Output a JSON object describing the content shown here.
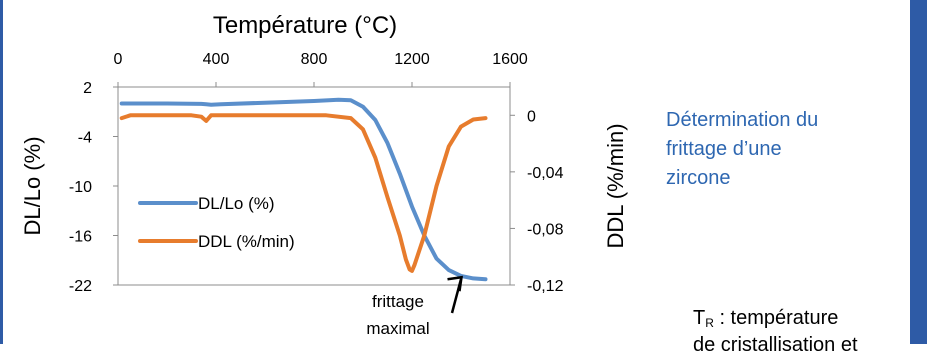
{
  "side_panel": {
    "title": "Détermination du frittage d’une zircone",
    "title_lines": [
      "Détermination du",
      "frittage d’une",
      "zircone"
    ],
    "note_symbol": "T",
    "note_subscript": "R",
    "note_text": " : température",
    "note_cut_text": "de cristallisation et",
    "accent_color": "#2E5BA6",
    "text_color": "#2E67B1"
  },
  "chart_data": {
    "type": "line",
    "title": "Température (°C)",
    "xlabel": "Température (°C)",
    "ylabel": "DL/Lo (%)",
    "y2label": "DDL (%/min)",
    "xlim": [
      0,
      1600
    ],
    "ylim": [
      -22,
      2
    ],
    "y2lim": [
      -0.12,
      0.02
    ],
    "xticks": [
      "0",
      "400",
      "800",
      "1200",
      "1600"
    ],
    "xtick_values": [
      0,
      400,
      800,
      1200,
      1600
    ],
    "yticks": [
      "2",
      "-4",
      "-10",
      "-16",
      "-22"
    ],
    "ytick_values": [
      2,
      -4,
      -10,
      -16,
      -22
    ],
    "y2ticks": [
      "0",
      "-0,04",
      "-0,08",
      "-0,12"
    ],
    "y2tick_values": [
      0,
      -0.04,
      -0.08,
      -0.12
    ],
    "legend_position": "lower-left",
    "grid": false,
    "series": [
      {
        "name": "DL/Lo (%)",
        "axis": "left",
        "color": "#5B8FCB",
        "x": [
          15,
          200,
          340,
          360,
          380,
          420,
          600,
          800,
          900,
          950,
          1000,
          1050,
          1100,
          1150,
          1200,
          1250,
          1300,
          1350,
          1400,
          1450,
          1500
        ],
        "y": [
          0.0,
          0.0,
          -0.05,
          -0.1,
          -0.15,
          -0.1,
          0.1,
          0.3,
          0.45,
          0.4,
          -0.4,
          -2.0,
          -4.8,
          -8.5,
          -12.5,
          -16.0,
          -18.8,
          -20.2,
          -20.9,
          -21.2,
          -21.3
        ]
      },
      {
        "name": "DDL (%/min)",
        "axis": "right",
        "color": "#E77C2D",
        "x": [
          15,
          50,
          300,
          340,
          360,
          370,
          380,
          400,
          600,
          850,
          950,
          1000,
          1050,
          1100,
          1150,
          1175,
          1190,
          1200,
          1210,
          1250,
          1300,
          1350,
          1400,
          1450,
          1500
        ],
        "y": [
          -0.002,
          0.0,
          0.0,
          -0.001,
          -0.004,
          -0.002,
          0.0,
          0.0,
          0.0,
          0.0,
          -0.002,
          -0.01,
          -0.03,
          -0.058,
          -0.085,
          -0.102,
          -0.109,
          -0.11,
          -0.106,
          -0.085,
          -0.05,
          -0.022,
          -0.008,
          -0.003,
          -0.002
        ]
      }
    ],
    "annotations": [
      {
        "text": "frittage",
        "line2": "maximal",
        "x": 1500,
        "y": -21.3
      }
    ]
  }
}
